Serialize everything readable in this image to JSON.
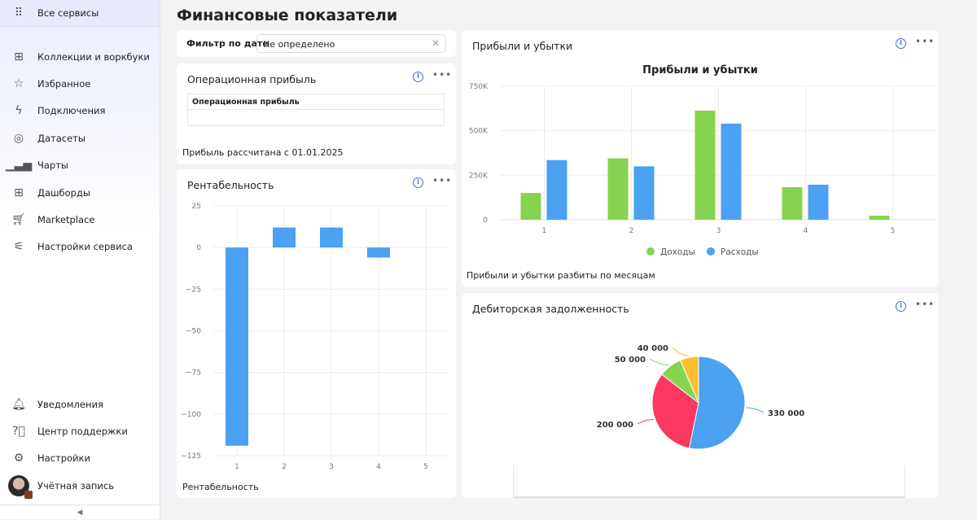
{
  "sidebar": {
    "all_services": "Все сервисы",
    "items": [
      {
        "label": "Коллекции и воркбуки",
        "icon": "collections-icon"
      },
      {
        "label": "Избранное",
        "icon": "star-icon"
      },
      {
        "label": "Подключения",
        "icon": "connections-icon"
      },
      {
        "label": "Датасеты",
        "icon": "datasets-icon"
      },
      {
        "label": "Чарты",
        "icon": "charts-icon"
      },
      {
        "label": "Дашборды",
        "icon": "dashboards-icon"
      },
      {
        "label": "Marketplace",
        "icon": "cart-icon"
      },
      {
        "label": "Настройки сервиса",
        "icon": "sliders-icon"
      }
    ],
    "bottom": [
      {
        "label": "Уведомления",
        "icon": "bell-icon"
      },
      {
        "label": "Центр поддержки",
        "icon": "help-icon"
      },
      {
        "label": "Настройки",
        "icon": "gear-icon"
      },
      {
        "label": "Учётная запись",
        "icon": "avatar"
      }
    ]
  },
  "page": {
    "title": "Финансовые показатели"
  },
  "filter": {
    "label": "Фильтр по дате",
    "value": "Не определено"
  },
  "op_profit": {
    "title": "Операционная прибыль",
    "column": "Операционная прибыль",
    "note": "Прибыль рассчитана с 01.01.2025"
  },
  "rent": {
    "title": "Рентабельность",
    "note": "Рентабельность"
  },
  "pnl": {
    "title": "Прибыли и убытки",
    "note": "Прибыли и убытки разбиты по месяцам"
  },
  "debt": {
    "title": "Дебиторская задолженность"
  },
  "chart_data": [
    {
      "type": "bar",
      "title": "",
      "xlabel": "",
      "ylabel": "",
      "categories": [
        "1",
        "2",
        "3",
        "4",
        "5"
      ],
      "values": [
        -119,
        12,
        12,
        -6,
        0
      ],
      "yticks": [
        "25",
        "0",
        "−25",
        "−50",
        "−75",
        "−100",
        "−125"
      ],
      "ylim": [
        -125,
        25
      ],
      "color": "#4ba1f2",
      "grid": true
    },
    {
      "type": "bar",
      "title": "Прибыли и убытки",
      "xlabel": "",
      "ylabel": "",
      "categories": [
        "1",
        "2",
        "3",
        "4",
        "5"
      ],
      "series": [
        {
          "name": "Доходы",
          "color": "#86d34f",
          "values": [
            150000,
            345000,
            613000,
            183000,
            23000
          ]
        },
        {
          "name": "Расходы",
          "color": "#4ba1f2",
          "values": [
            335000,
            300000,
            540000,
            197000,
            0
          ]
        }
      ],
      "yticks": [
        "0",
        "250K",
        "500K",
        "750K"
      ],
      "ylim": [
        0,
        750000
      ],
      "legend": "bottom",
      "grid": true
    },
    {
      "type": "pie",
      "title": "",
      "slices": [
        {
          "label": "330 000",
          "value": 330000,
          "color": "#4ba1f2"
        },
        {
          "label": "200 000",
          "value": 200000,
          "color": "#fa3860"
        },
        {
          "label": "50 000",
          "value": 50000,
          "color": "#86d34f"
        },
        {
          "label": "40 000",
          "value": 40000,
          "color": "#fbc02d"
        }
      ]
    }
  ]
}
